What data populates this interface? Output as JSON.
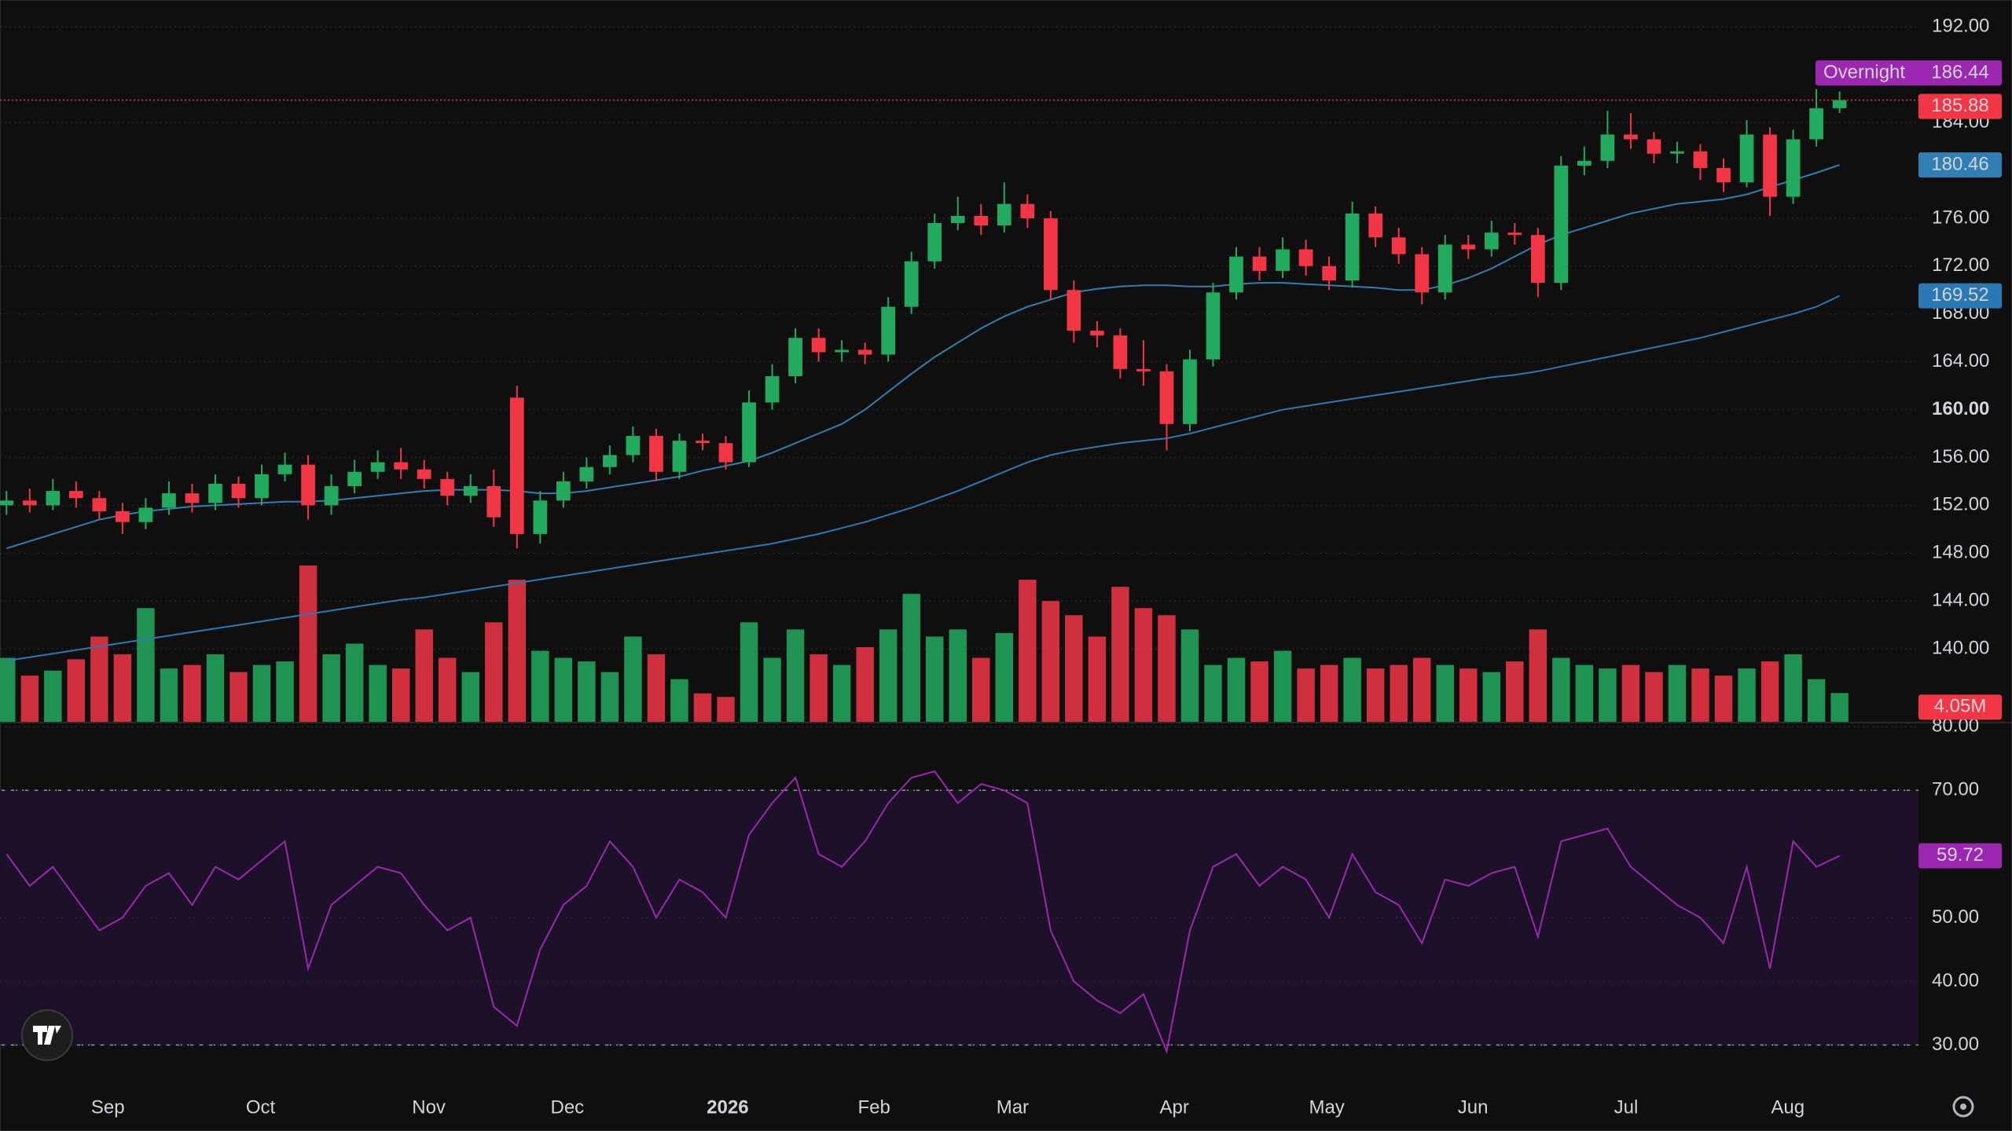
{
  "chart_data": {
    "type": "candlestick",
    "xlim": [
      -0.28,
      82.4
    ],
    "xticks": [
      {
        "value": 4.37,
        "label": "Sep"
      },
      {
        "value": 10.95,
        "label": "Oct"
      },
      {
        "value": 18.2,
        "label": "Nov"
      },
      {
        "value": 24.17,
        "label": "Dec"
      },
      {
        "value": 31.08,
        "label": "2026"
      },
      {
        "value": 37.39,
        "label": "Feb"
      },
      {
        "value": 43.36,
        "label": "Mar"
      },
      {
        "value": 50.33,
        "label": "Apr"
      },
      {
        "value": 56.9,
        "label": "May"
      },
      {
        "value": 63.2,
        "label": "Jun"
      },
      {
        "value": 69.8,
        "label": "Jul"
      },
      {
        "value": 76.77,
        "label": "Aug"
      }
    ],
    "ylim": [
      133.9,
      194.25
    ],
    "yticks": [
      {
        "value": 140,
        "label": "140.00"
      },
      {
        "value": 144,
        "label": "144.00"
      },
      {
        "value": 148,
        "label": "148.00"
      },
      {
        "value": 152,
        "label": "152.00"
      },
      {
        "value": 156,
        "label": "156.00"
      },
      {
        "value": 160,
        "label": "160.00"
      },
      {
        "value": 164,
        "label": "164.00"
      },
      {
        "value": 168,
        "label": "168.00"
      },
      {
        "value": 172,
        "label": "172.00"
      },
      {
        "value": 176,
        "label": "176.00"
      },
      {
        "value": 184,
        "label": "184.00"
      },
      {
        "value": 192,
        "label": "192.00"
      }
    ],
    "grid": true,
    "up_color": "#22ab5e",
    "down_color": "#f23645",
    "candles": {
      "open": [
        152.0,
        152.4,
        152.0,
        153.2,
        152.6,
        151.5,
        150.6,
        151.8,
        153.0,
        152.2,
        153.8,
        152.6,
        154.6,
        155.4,
        152.0,
        153.6,
        154.8,
        155.6,
        155.0,
        154.2,
        152.8,
        153.6,
        161.0,
        149.6,
        152.4,
        154.0,
        155.2,
        156.2,
        157.8,
        154.8,
        157.4,
        157.2,
        155.6,
        160.6,
        162.8,
        166.0,
        164.8,
        165.0,
        164.6,
        168.6,
        172.4,
        175.6,
        176.2,
        175.4,
        177.2,
        176.0,
        170.0,
        166.6,
        166.2,
        163.4,
        163.2,
        158.8,
        164.2,
        169.8,
        172.8,
        171.6,
        173.4,
        172.0,
        170.8,
        176.4,
        174.4,
        173.0,
        169.8,
        173.8,
        173.4,
        174.8,
        174.6,
        170.6,
        180.4,
        180.8,
        183.0,
        182.6,
        181.4,
        181.6,
        180.2,
        179.0,
        183.0,
        177.8,
        182.6,
        185.2
      ],
      "high": [
        153.2,
        153.4,
        154.2,
        154.0,
        153.2,
        152.2,
        152.6,
        154.0,
        153.8,
        154.6,
        154.4,
        155.4,
        156.4,
        156.2,
        154.6,
        155.8,
        156.6,
        156.8,
        155.8,
        154.8,
        154.6,
        155.0,
        162.0,
        153.2,
        154.8,
        156.0,
        157.0,
        158.6,
        158.4,
        158.0,
        158.0,
        157.8,
        161.6,
        163.8,
        166.8,
        166.8,
        165.8,
        165.6,
        169.4,
        173.2,
        176.4,
        177.8,
        177.2,
        179.0,
        178.0,
        176.6,
        170.8,
        167.4,
        166.8,
        165.8,
        163.8,
        165.0,
        170.6,
        173.6,
        173.6,
        174.4,
        174.2,
        172.8,
        177.4,
        177.0,
        175.2,
        173.6,
        174.6,
        174.6,
        175.8,
        175.6,
        175.2,
        181.2,
        182.0,
        185.0,
        184.8,
        183.2,
        182.4,
        182.2,
        181.0,
        184.2,
        183.6,
        183.4,
        186.8,
        186.6
      ],
      "low": [
        151.2,
        151.4,
        151.6,
        151.8,
        150.8,
        149.6,
        150.0,
        151.2,
        151.4,
        151.6,
        151.8,
        152.0,
        154.0,
        150.8,
        151.2,
        153.0,
        154.2,
        154.2,
        153.4,
        152.0,
        152.2,
        150.2,
        148.4,
        148.8,
        151.8,
        153.4,
        154.6,
        155.6,
        154.0,
        154.2,
        156.6,
        155.0,
        155.2,
        160.0,
        162.2,
        164.0,
        164.0,
        163.8,
        164.0,
        168.0,
        171.8,
        175.0,
        174.6,
        174.8,
        175.2,
        169.2,
        165.6,
        165.2,
        162.6,
        162.0,
        156.6,
        158.2,
        163.6,
        169.2,
        170.8,
        171.0,
        171.2,
        170.0,
        170.2,
        173.6,
        172.2,
        168.8,
        169.2,
        172.6,
        172.8,
        173.8,
        169.4,
        170.0,
        179.6,
        180.2,
        181.8,
        180.6,
        180.6,
        179.2,
        178.2,
        178.6,
        176.2,
        177.2,
        182.0,
        184.8
      ],
      "close": [
        152.4,
        152.0,
        153.2,
        152.6,
        151.5,
        150.6,
        151.8,
        153.0,
        152.2,
        153.8,
        152.6,
        154.6,
        155.4,
        152.0,
        153.6,
        154.8,
        155.6,
        155.0,
        154.2,
        152.8,
        153.6,
        151.0,
        149.6,
        152.4,
        154.0,
        155.2,
        156.2,
        157.8,
        154.8,
        157.4,
        157.2,
        155.6,
        160.6,
        162.8,
        166.0,
        164.8,
        165.0,
        164.6,
        168.6,
        172.4,
        175.6,
        176.2,
        175.4,
        177.2,
        176.0,
        170.0,
        166.6,
        166.2,
        163.4,
        163.2,
        158.8,
        164.2,
        169.8,
        172.8,
        171.6,
        173.4,
        172.0,
        170.8,
        176.4,
        174.4,
        173.0,
        169.8,
        173.8,
        173.4,
        174.8,
        174.6,
        170.6,
        180.4,
        180.8,
        183.0,
        182.6,
        181.4,
        181.6,
        180.2,
        179.0,
        183.0,
        177.8,
        182.6,
        185.2,
        185.88
      ]
    },
    "moving_averages": [
      {
        "color": "#2f7fb5",
        "values": [
          148.4,
          149.0,
          149.6,
          150.2,
          150.8,
          151.2,
          151.5,
          151.7,
          151.9,
          152.0,
          152.1,
          152.2,
          152.3,
          152.3,
          152.4,
          152.6,
          152.8,
          153.0,
          153.2,
          153.3,
          153.3,
          153.3,
          153.2,
          153.0,
          153.0,
          153.2,
          153.5,
          153.8,
          154.1,
          154.4,
          154.9,
          155.3,
          155.7,
          156.4,
          157.2,
          158.0,
          158.8,
          160.0,
          161.5,
          163.0,
          164.4,
          165.6,
          166.8,
          167.8,
          168.6,
          169.2,
          169.8,
          170.1,
          170.3,
          170.4,
          170.4,
          170.3,
          170.3,
          170.5,
          170.6,
          170.6,
          170.5,
          170.4,
          170.3,
          170.2,
          170.0,
          170.0,
          170.4,
          171.0,
          171.8,
          172.8,
          173.8,
          174.6,
          175.2,
          175.8,
          176.4,
          176.8,
          177.2,
          177.4,
          177.6,
          178.0,
          178.6,
          179.2,
          179.8,
          180.46
        ]
      },
      {
        "color": "#2a78b4",
        "values": [
          139.0,
          139.3,
          139.6,
          139.9,
          140.2,
          140.5,
          140.8,
          141.1,
          141.4,
          141.7,
          142.0,
          142.3,
          142.6,
          142.9,
          143.2,
          143.5,
          143.8,
          144.1,
          144.3,
          144.6,
          144.9,
          145.2,
          145.5,
          145.8,
          146.1,
          146.4,
          146.7,
          147.0,
          147.3,
          147.6,
          147.9,
          148.2,
          148.5,
          148.8,
          149.2,
          149.6,
          150.1,
          150.6,
          151.2,
          151.8,
          152.5,
          153.2,
          154.0,
          154.8,
          155.6,
          156.2,
          156.6,
          156.9,
          157.2,
          157.4,
          157.6,
          158.0,
          158.5,
          159.0,
          159.5,
          160.0,
          160.3,
          160.6,
          160.9,
          161.2,
          161.5,
          161.8,
          162.1,
          162.4,
          162.7,
          162.9,
          163.2,
          163.6,
          164.0,
          164.4,
          164.8,
          165.2,
          165.6,
          166.0,
          166.5,
          167.0,
          167.5,
          168.0,
          168.6,
          169.52
        ]
      }
    ],
    "overnight": {
      "label": "Overnight",
      "value": 186.44,
      "color": "#9c27b0"
    },
    "volume": {
      "values": [
        9.0,
        6.5,
        7.2,
        8.8,
        12.0,
        9.5,
        16.0,
        7.5,
        8.0,
        9.5,
        7.0,
        8.0,
        8.5,
        22.0,
        9.5,
        11.0,
        8.0,
        7.5,
        13.0,
        9.0,
        7.0,
        14.0,
        20.0,
        10.0,
        9.0,
        8.5,
        7.0,
        12.0,
        9.5,
        6.0,
        4.0,
        3.5,
        14.0,
        9.0,
        13.0,
        9.5,
        8.0,
        10.5,
        13.0,
        18.0,
        12.0,
        13.0,
        9.0,
        12.5,
        20.0,
        17.0,
        15.0,
        12.0,
        19.0,
        16.0,
        15.0,
        13.0,
        8.0,
        9.0,
        8.5,
        10.0,
        7.5,
        8.0,
        9.0,
        7.5,
        8.0,
        9.0,
        8.0,
        7.5,
        7.0,
        8.5,
        13.0,
        9.0,
        8.0,
        7.5,
        8.0,
        7.0,
        8.0,
        7.5,
        6.5,
        7.5,
        8.5,
        9.5,
        6.0,
        4.05
      ],
      "last_label": "4.05M"
    },
    "rsi": {
      "color": "#9c27b0",
      "band": [
        30,
        70
      ],
      "ylim": [
        23.9,
        80.4
      ],
      "yticks": [
        {
          "value": 30,
          "label": "30.00"
        },
        {
          "value": 40,
          "label": "40.00"
        },
        {
          "value": 50,
          "label": "50.00"
        },
        {
          "value": 70,
          "label": "70.00"
        },
        {
          "value": 80,
          "label": "80.00"
        }
      ],
      "values": [
        60,
        55,
        58,
        53,
        48,
        50,
        55,
        57,
        52,
        58,
        56,
        59,
        62,
        42,
        52,
        55,
        58,
        57,
        52,
        48,
        50,
        36,
        33,
        45,
        52,
        55,
        62,
        58,
        50,
        56,
        54,
        50,
        63,
        68,
        72,
        60,
        58,
        62,
        68,
        72,
        73,
        68,
        71,
        70,
        68,
        48,
        40,
        37,
        35,
        38,
        29,
        48,
        58,
        60,
        55,
        58,
        56,
        50,
        60,
        54,
        52,
        46,
        56,
        55,
        57,
        58,
        47,
        62,
        63,
        64,
        58,
        55,
        52,
        50,
        46,
        58,
        42,
        62,
        58,
        59.72
      ]
    }
  }
}
